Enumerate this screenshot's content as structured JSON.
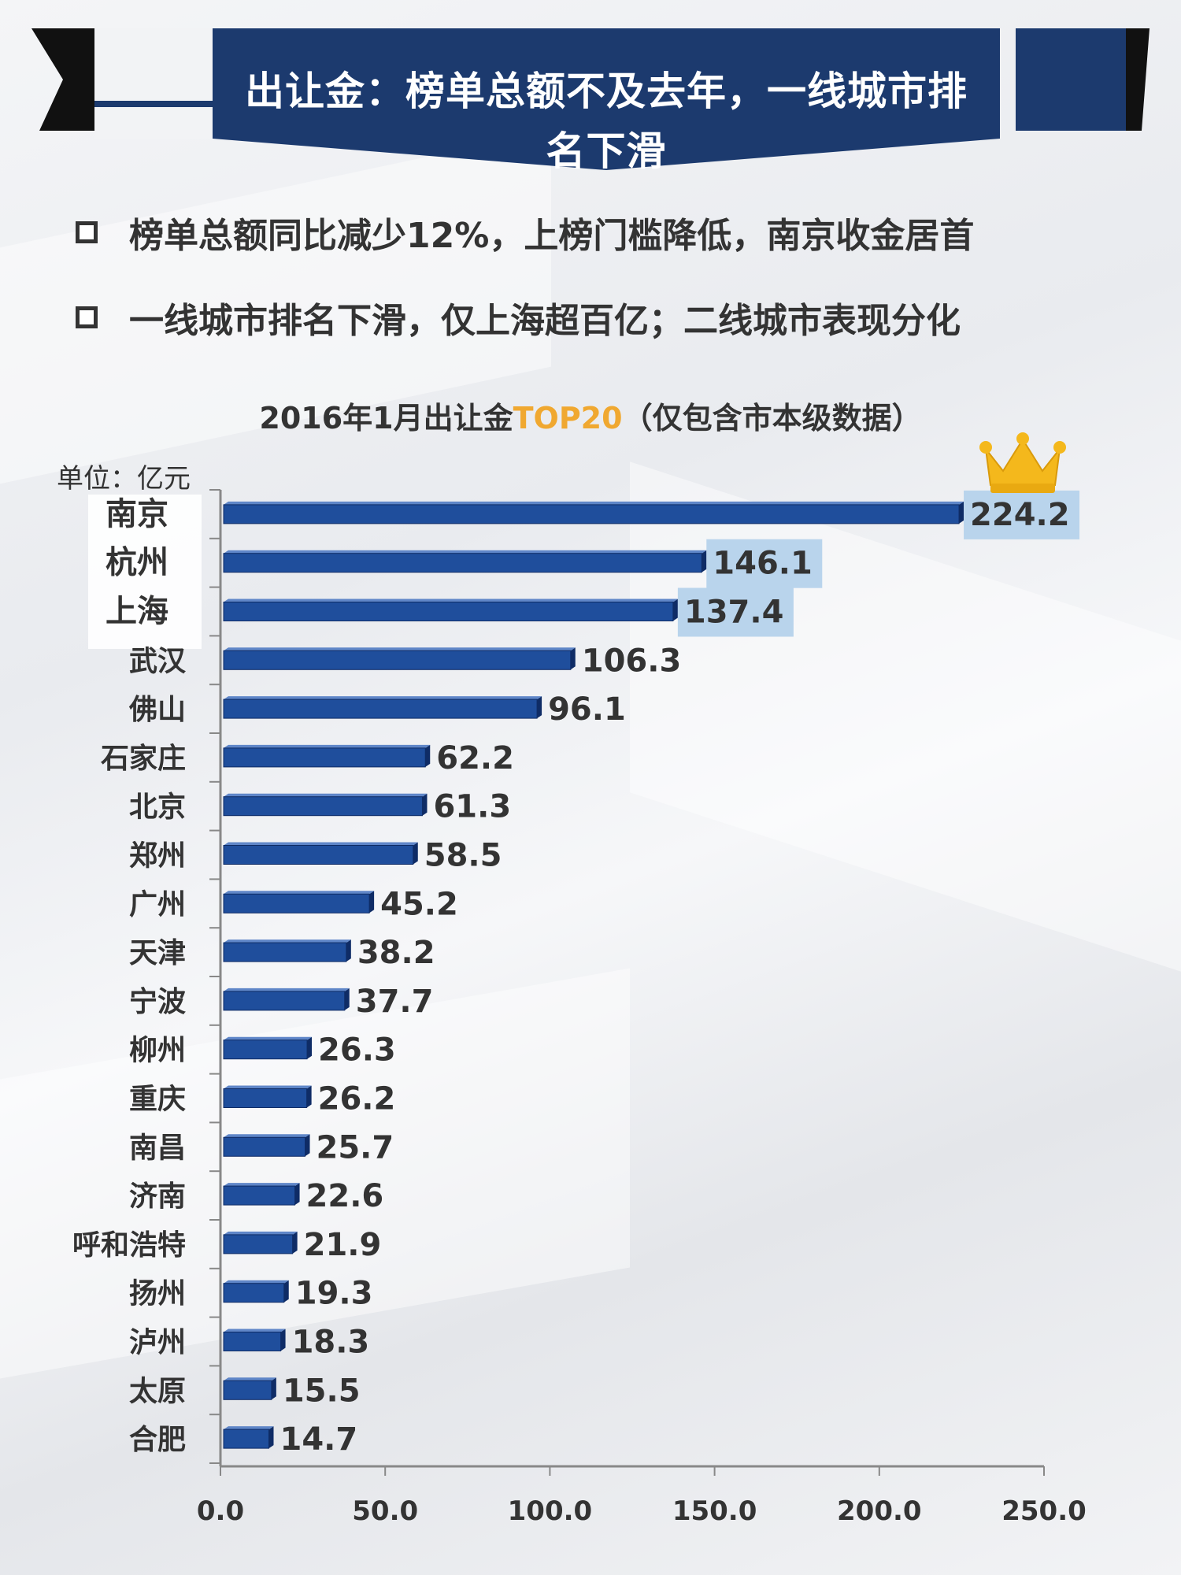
{
  "header": {
    "title_line1": "出让金：榜单总额不及去年，一线城市排",
    "title_line2": "名下滑"
  },
  "bullets": [
    "榜单总额同比减少12%，上榜门槛降低，南京收金居首",
    "一线城市排名下滑，仅上海超百亿；二线城市表现分化"
  ],
  "chart_data": {
    "type": "bar",
    "orientation": "horizontal",
    "title_prefix": "2016年1月出让金",
    "title_highlight": "TOP20",
    "title_suffix": "（仅包含市本级数据）",
    "unit_label": "单位：亿元",
    "categories": [
      "南京",
      "杭州",
      "上海",
      "武汉",
      "佛山",
      "石家庄",
      "北京",
      "郑州",
      "广州",
      "天津",
      "宁波",
      "柳州",
      "重庆",
      "南昌",
      "济南",
      "呼和浩特",
      "扬州",
      "泸州",
      "太原",
      "合肥"
    ],
    "values": [
      224.2,
      146.1,
      137.4,
      106.3,
      96.1,
      62.2,
      61.3,
      58.5,
      45.2,
      38.2,
      37.7,
      26.3,
      26.2,
      25.7,
      22.6,
      21.9,
      19.3,
      18.3,
      15.5,
      14.7
    ],
    "value_labels": [
      "224.2",
      "146.1",
      "137.4",
      "106.3",
      "96.1",
      "62.2",
      "61.3",
      "58.5",
      "45.2",
      "38.2",
      "37.7",
      "26.3",
      "26.2",
      "25.7",
      "22.6",
      "21.9",
      "19.3",
      "18.3",
      "15.5",
      "14.7"
    ],
    "xlim": [
      0,
      250
    ],
    "x_ticks": [
      "0.0",
      "50.0",
      "100.0",
      "150.0",
      "200.0",
      "250.0"
    ],
    "highlight_top_n": 3,
    "colors": {
      "bar": "#1f4e9c",
      "bar_edge": "#0f2c66",
      "highlight_text": "#f0a830",
      "highlight_label_bg": "#b9d4ec",
      "banner": "#1c3a6e"
    },
    "grid": false,
    "legend": "none"
  }
}
